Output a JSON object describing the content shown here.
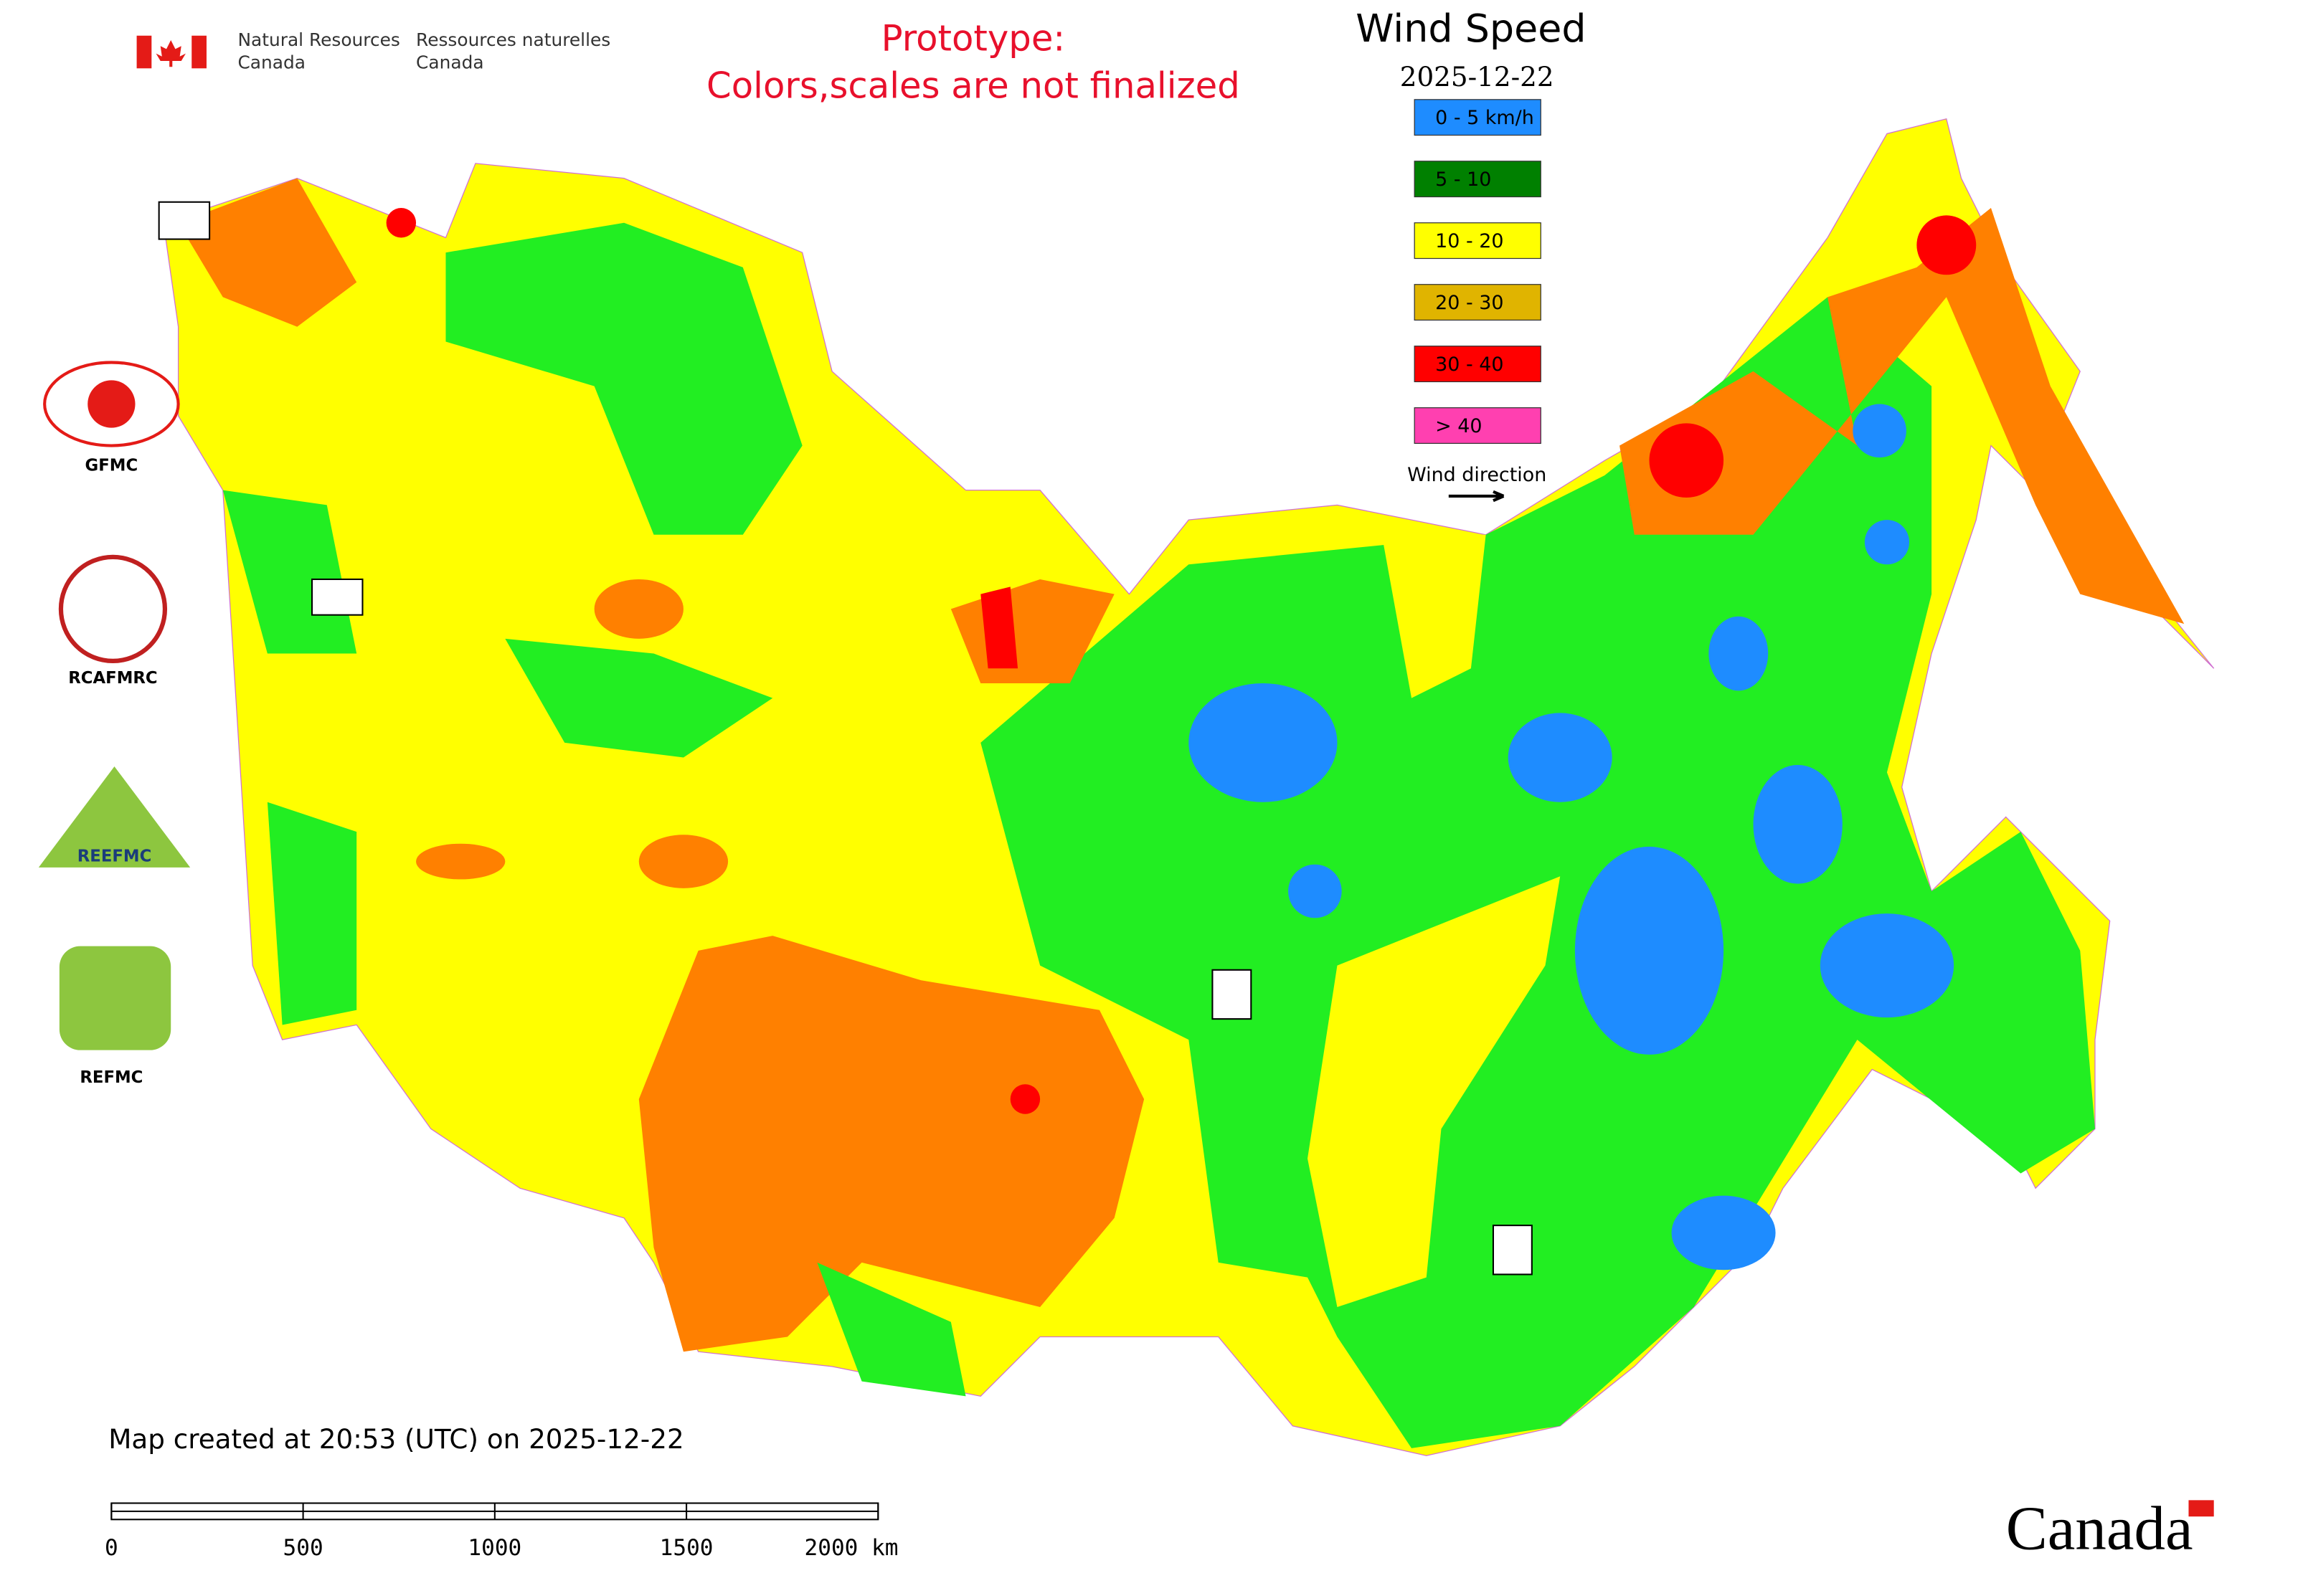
{
  "header": {
    "dept_en_line1": "Natural Resources",
    "dept_en_line2": "Canada",
    "dept_fr_line1": "Ressources naturelles",
    "dept_fr_line2": "Canada"
  },
  "notice": {
    "line1": "Prototype:",
    "line2": "Colors,scales are not finalized"
  },
  "legend": {
    "title": "Wind Speed",
    "date": "2025-12-22",
    "items": [
      {
        "label": "0 - 5 km/h",
        "color": "#1e8cff"
      },
      {
        "label": "5 - 10",
        "color": "#008000"
      },
      {
        "label": "10 - 20",
        "color": "#ffff00"
      },
      {
        "label": "20 - 30",
        "color": "#e0b400"
      },
      {
        "label": "30 - 40",
        "color": "#ff0000"
      },
      {
        "label": "> 40",
        "color": "#ff40b0"
      }
    ],
    "wind_direction": "Wind direction"
  },
  "partners": [
    "GFMC",
    "RCAFMRC",
    "REEFMC",
    "REFMC"
  ],
  "footer": {
    "created": "Map created at 20:53 (UTC) on 2025-12-22",
    "wordmark": "Canada"
  },
  "scale_bar": {
    "range": [
      0,
      2000
    ],
    "ticks": [
      0,
      500,
      1000,
      1500,
      {
        "value": 2000,
        "label": "2000 km"
      }
    ]
  }
}
